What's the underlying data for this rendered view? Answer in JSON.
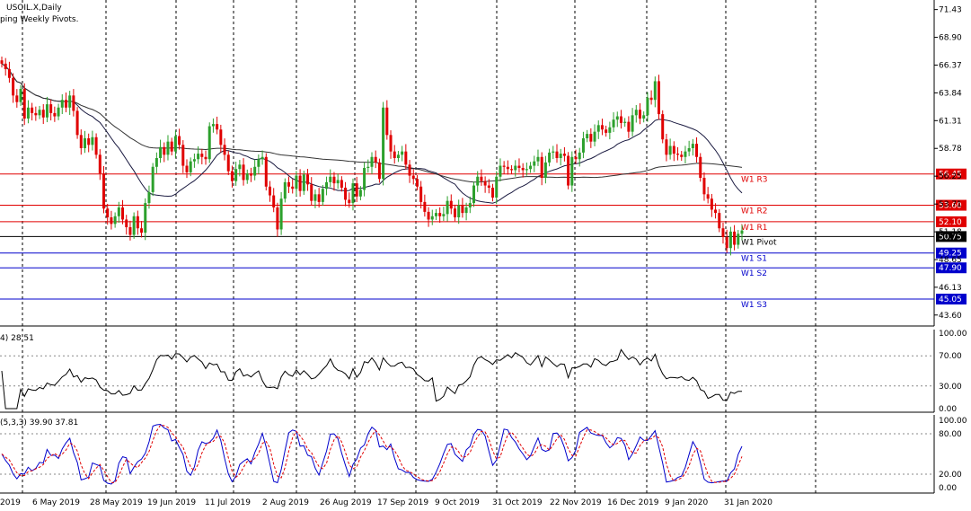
{
  "header": {
    "symbol": "USOIL.X,Daily",
    "subtitle": "ping Weekly Pivots."
  },
  "colors": {
    "up": "#2ca02c",
    "down": "#e00000",
    "resistance": "#e00000",
    "support": "#0000cc",
    "pivot": "#000000",
    "rsi": "#000000",
    "stoch_main": "#0000cc",
    "stoch_signal": "#e00000",
    "ma_short": "#1a1a40",
    "ma_long": "#333333"
  },
  "price_axis": {
    "ticks": [
      "71.43",
      "68.90",
      "66.37",
      "63.84",
      "61.31",
      "58.78",
      "56.25",
      "53.71",
      "51.18",
      "48.65",
      "46.13",
      "43.60"
    ],
    "ymin": 42.6,
    "ymax": 72.3
  },
  "pivots": [
    {
      "name": "W1 R3",
      "value": 56.45,
      "label": "56.45",
      "kind": "resistance"
    },
    {
      "name": "W1 R2",
      "value": 53.6,
      "label": "53.60",
      "kind": "resistance"
    },
    {
      "name": "W1 R1",
      "value": 52.1,
      "label": "52.10",
      "kind": "resistance"
    },
    {
      "name": "W1 Pivot",
      "value": 50.75,
      "label": "50.75",
      "kind": "pivot"
    },
    {
      "name": "W1 S1",
      "value": 49.25,
      "label": "49.25",
      "kind": "support"
    },
    {
      "name": "W1 S2",
      "value": 47.9,
      "label": "47.90",
      "kind": "support"
    },
    {
      "name": "W1 S3",
      "value": 45.05,
      "label": "45.05",
      "kind": "support"
    }
  ],
  "date_labels": [
    "2019",
    "6 May 2019",
    "28 May 2019",
    "19 Jun 2019",
    "11 Jul 2019",
    "2 Aug 2019",
    "26 Aug 2019",
    "17 Sep 2019",
    "9 Oct 2019",
    "31 Oct 2019",
    "22 Nov 2019",
    "16 Dec 2019",
    "9 Jan 2020",
    "31 Jan 2020"
  ],
  "rsi": {
    "label": "4) 28.51",
    "ticks": [
      "100.00",
      "70.00",
      "30.00",
      "0.00"
    ]
  },
  "stoch": {
    "label": "(5,3,3) 39.90 37.81",
    "ticks": [
      "100.00",
      "80.00",
      "20.00",
      "0.00"
    ]
  },
  "chart_data": {
    "type": "candlestick",
    "title": "USOIL.X,Daily",
    "closes": [
      66.5,
      66.0,
      65.2,
      63.6,
      63.0,
      64.2,
      61.5,
      62.5,
      62.0,
      61.8,
      62.3,
      61.6,
      62.8,
      62.0,
      61.7,
      62.5,
      63.2,
      62.5,
      63.6,
      62.2,
      60.0,
      58.8,
      59.7,
      59.1,
      59.8,
      58.2,
      56.5,
      53.3,
      52.5,
      51.9,
      52.6,
      53.4,
      52.3,
      51.6,
      50.9,
      52.6,
      51.5,
      51.1,
      53.8,
      54.8,
      57.1,
      57.9,
      58.9,
      58.2,
      59.4,
      58.5,
      59.9,
      59.1,
      57.2,
      56.6,
      57.6,
      57.8,
      58.3,
      58.0,
      57.8,
      60.8,
      61.0,
      60.5,
      59.1,
      58.2,
      56.7,
      55.8,
      56.9,
      57.3,
      55.9,
      56.5,
      56.3,
      57.1,
      57.8,
      58.0,
      55.3,
      54.5,
      53.4,
      51.4,
      54.2,
      55.7,
      55.3,
      55.1,
      56.3,
      54.9,
      56.4,
      55.5,
      54.0,
      54.6,
      53.9,
      55.1,
      55.7,
      56.2,
      55.6,
      55.9,
      55.2,
      54.1,
      53.8,
      55.6,
      54.4,
      55.0,
      57.0,
      57.1,
      58.0,
      57.5,
      56.0,
      62.5,
      60.0,
      58.5,
      57.9,
      58.2,
      58.5,
      57.3,
      56.3,
      56.0,
      55.3,
      53.9,
      53.0,
      52.3,
      52.6,
      52.9,
      52.6,
      52.8,
      54.0,
      53.3,
      52.5,
      53.6,
      52.9,
      53.4,
      53.8,
      55.4,
      56.2,
      55.8,
      55.4,
      55.2,
      54.3,
      56.2,
      57.2,
      57.1,
      56.9,
      56.8,
      57.2,
      57.0,
      56.8,
      56.9,
      57.2,
      57.6,
      58.0,
      56.1,
      57.5,
      58.4,
      58.5,
      57.9,
      58.3,
      58.1,
      55.4,
      58.0,
      57.8,
      58.4,
      59.7,
      60.1,
      59.4,
      60.3,
      60.9,
      60.5,
      60.2,
      60.7,
      61.4,
      61.7,
      61.1,
      61.2,
      60.3,
      61.8,
      62.3,
      61.5,
      61.8,
      63.4,
      63.2,
      64.9,
      61.9,
      59.6,
      58.2,
      59.0,
      58.3,
      58.2,
      58.0,
      58.5,
      58.8,
      59.2,
      58.0,
      56.1,
      54.6,
      54.2,
      53.2,
      52.9,
      51.5,
      50.7,
      49.7,
      51.2,
      50.0,
      51.0,
      51.3
    ]
  }
}
